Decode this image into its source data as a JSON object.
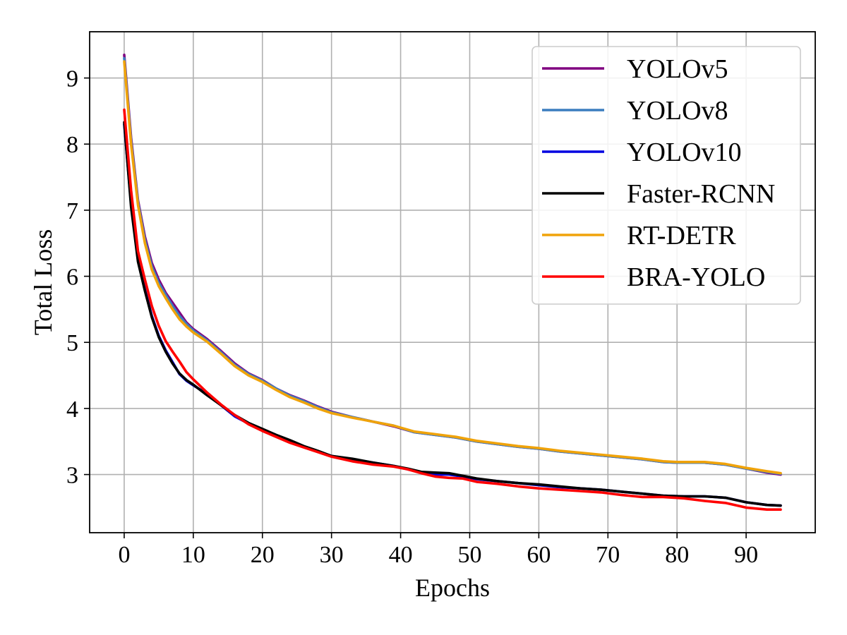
{
  "chart_data": {
    "type": "line",
    "title": "",
    "xlabel": "Epochs",
    "ylabel": "Total Loss",
    "xlim": [
      -5,
      100
    ],
    "ylim": [
      2.12,
      9.7
    ],
    "xticks": [
      0,
      10,
      20,
      30,
      40,
      50,
      60,
      70,
      80,
      90
    ],
    "yticks": [
      3,
      4,
      5,
      6,
      7,
      8,
      9
    ],
    "grid": true,
    "legend_position": "top-right",
    "series": [
      {
        "name": "YOLOv5",
        "color": "#800080",
        "points": [
          [
            0,
            9.35
          ],
          [
            1,
            8.1
          ],
          [
            2,
            7.15
          ],
          [
            3,
            6.6
          ],
          [
            4,
            6.2
          ],
          [
            5,
            5.95
          ],
          [
            6,
            5.75
          ],
          [
            7,
            5.6
          ],
          [
            8,
            5.45
          ],
          [
            9,
            5.3
          ],
          [
            10,
            5.2
          ],
          [
            12,
            5.05
          ],
          [
            14,
            4.87
          ],
          [
            16,
            4.68
          ],
          [
            18,
            4.53
          ],
          [
            20,
            4.43
          ],
          [
            22,
            4.3
          ],
          [
            24,
            4.2
          ],
          [
            26,
            4.12
          ],
          [
            28,
            4.03
          ],
          [
            30,
            3.95
          ],
          [
            33,
            3.87
          ],
          [
            36,
            3.8
          ],
          [
            39,
            3.73
          ],
          [
            42,
            3.64
          ],
          [
            45,
            3.6
          ],
          [
            48,
            3.56
          ],
          [
            51,
            3.5
          ],
          [
            54,
            3.46
          ],
          [
            57,
            3.42
          ],
          [
            60,
            3.39
          ],
          [
            63,
            3.35
          ],
          [
            66,
            3.32
          ],
          [
            69,
            3.29
          ],
          [
            72,
            3.26
          ],
          [
            75,
            3.23
          ],
          [
            78,
            3.19
          ],
          [
            80,
            3.18
          ],
          [
            84,
            3.18
          ],
          [
            87,
            3.15
          ],
          [
            90,
            3.09
          ],
          [
            93,
            3.03
          ],
          [
            95,
            3.0
          ]
        ]
      },
      {
        "name": "YOLOv8",
        "color": "#3b7dbf",
        "points": [
          [
            0,
            9.3
          ],
          [
            1,
            8.05
          ],
          [
            2,
            7.12
          ],
          [
            3,
            6.55
          ],
          [
            4,
            6.15
          ],
          [
            5,
            5.9
          ],
          [
            6,
            5.72
          ],
          [
            7,
            5.55
          ],
          [
            8,
            5.4
          ],
          [
            9,
            5.28
          ],
          [
            10,
            5.18
          ],
          [
            12,
            5.03
          ],
          [
            14,
            4.85
          ],
          [
            16,
            4.66
          ],
          [
            18,
            4.52
          ],
          [
            20,
            4.42
          ],
          [
            22,
            4.3
          ],
          [
            24,
            4.19
          ],
          [
            26,
            4.11
          ],
          [
            28,
            4.02
          ],
          [
            30,
            3.94
          ],
          [
            33,
            3.87
          ],
          [
            36,
            3.8
          ],
          [
            39,
            3.74
          ],
          [
            42,
            3.64
          ],
          [
            45,
            3.6
          ],
          [
            48,
            3.56
          ],
          [
            51,
            3.5
          ],
          [
            54,
            3.46
          ],
          [
            57,
            3.42
          ],
          [
            60,
            3.39
          ],
          [
            63,
            3.35
          ],
          [
            66,
            3.32
          ],
          [
            69,
            3.29
          ],
          [
            72,
            3.26
          ],
          [
            75,
            3.23
          ],
          [
            78,
            3.19
          ],
          [
            80,
            3.18
          ],
          [
            84,
            3.18
          ],
          [
            87,
            3.15
          ],
          [
            90,
            3.09
          ],
          [
            93,
            3.04
          ],
          [
            95,
            3.01
          ]
        ]
      },
      {
        "name": "YOLOv10",
        "color": "#0000e0",
        "points": [
          [
            0,
            8.3
          ],
          [
            1,
            7.1
          ],
          [
            2,
            6.25
          ],
          [
            3,
            5.8
          ],
          [
            4,
            5.4
          ],
          [
            5,
            5.1
          ],
          [
            6,
            4.88
          ],
          [
            7,
            4.7
          ],
          [
            8,
            4.52
          ],
          [
            9,
            4.42
          ],
          [
            10,
            4.35
          ],
          [
            12,
            4.22
          ],
          [
            14,
            4.05
          ],
          [
            16,
            3.88
          ],
          [
            18,
            3.77
          ],
          [
            20,
            3.67
          ],
          [
            22,
            3.58
          ],
          [
            24,
            3.5
          ],
          [
            26,
            3.42
          ],
          [
            28,
            3.35
          ],
          [
            30,
            3.28
          ],
          [
            33,
            3.23
          ],
          [
            36,
            3.18
          ],
          [
            39,
            3.13
          ],
          [
            41,
            3.08
          ],
          [
            43,
            3.03
          ],
          [
            45,
            3.0
          ],
          [
            47,
            3.0
          ],
          [
            49,
            2.97
          ],
          [
            51,
            2.93
          ],
          [
            54,
            2.9
          ],
          [
            57,
            2.87
          ],
          [
            60,
            2.84
          ],
          [
            63,
            2.81
          ],
          [
            66,
            2.79
          ],
          [
            69,
            2.77
          ],
          [
            72,
            2.74
          ],
          [
            75,
            2.71
          ],
          [
            78,
            2.68
          ],
          [
            81,
            2.67
          ],
          [
            84,
            2.67
          ],
          [
            87,
            2.65
          ],
          [
            90,
            2.58
          ],
          [
            93,
            2.54
          ],
          [
            95,
            2.53
          ]
        ]
      },
      {
        "name": "Faster-RCNN",
        "color": "#000000",
        "points": [
          [
            0,
            8.33
          ],
          [
            1,
            7.05
          ],
          [
            2,
            6.22
          ],
          [
            3,
            5.78
          ],
          [
            4,
            5.38
          ],
          [
            5,
            5.08
          ],
          [
            6,
            4.86
          ],
          [
            7,
            4.68
          ],
          [
            8,
            4.53
          ],
          [
            9,
            4.43
          ],
          [
            10,
            4.36
          ],
          [
            12,
            4.2
          ],
          [
            14,
            4.05
          ],
          [
            16,
            3.9
          ],
          [
            18,
            3.78
          ],
          [
            20,
            3.69
          ],
          [
            22,
            3.6
          ],
          [
            24,
            3.52
          ],
          [
            26,
            3.43
          ],
          [
            28,
            3.36
          ],
          [
            30,
            3.28
          ],
          [
            33,
            3.24
          ],
          [
            36,
            3.18
          ],
          [
            39,
            3.13
          ],
          [
            41,
            3.09
          ],
          [
            43,
            3.04
          ],
          [
            45,
            3.03
          ],
          [
            47,
            3.02
          ],
          [
            49,
            2.98
          ],
          [
            51,
            2.94
          ],
          [
            54,
            2.9
          ],
          [
            57,
            2.87
          ],
          [
            60,
            2.85
          ],
          [
            63,
            2.82
          ],
          [
            66,
            2.79
          ],
          [
            69,
            2.77
          ],
          [
            72,
            2.74
          ],
          [
            75,
            2.71
          ],
          [
            78,
            2.68
          ],
          [
            81,
            2.67
          ],
          [
            84,
            2.67
          ],
          [
            87,
            2.65
          ],
          [
            90,
            2.58
          ],
          [
            93,
            2.54
          ],
          [
            95,
            2.53
          ]
        ]
      },
      {
        "name": "RT-DETR",
        "color": "#f0a30a",
        "points": [
          [
            0,
            9.25
          ],
          [
            1,
            8.0
          ],
          [
            2,
            7.08
          ],
          [
            3,
            6.5
          ],
          [
            4,
            6.1
          ],
          [
            5,
            5.85
          ],
          [
            6,
            5.67
          ],
          [
            7,
            5.5
          ],
          [
            8,
            5.35
          ],
          [
            9,
            5.24
          ],
          [
            10,
            5.15
          ],
          [
            12,
            5.01
          ],
          [
            14,
            4.83
          ],
          [
            16,
            4.64
          ],
          [
            18,
            4.5
          ],
          [
            20,
            4.4
          ],
          [
            22,
            4.28
          ],
          [
            24,
            4.17
          ],
          [
            26,
            4.09
          ],
          [
            28,
            4.0
          ],
          [
            30,
            3.93
          ],
          [
            33,
            3.86
          ],
          [
            36,
            3.8
          ],
          [
            39,
            3.74
          ],
          [
            42,
            3.65
          ],
          [
            45,
            3.61
          ],
          [
            48,
            3.57
          ],
          [
            51,
            3.51
          ],
          [
            54,
            3.47
          ],
          [
            57,
            3.43
          ],
          [
            60,
            3.4
          ],
          [
            63,
            3.36
          ],
          [
            66,
            3.33
          ],
          [
            69,
            3.3
          ],
          [
            72,
            3.27
          ],
          [
            75,
            3.24
          ],
          [
            78,
            3.2
          ],
          [
            80,
            3.19
          ],
          [
            84,
            3.19
          ],
          [
            87,
            3.16
          ],
          [
            90,
            3.1
          ],
          [
            93,
            3.05
          ],
          [
            95,
            3.02
          ]
        ]
      },
      {
        "name": "BRA-YOLO",
        "color": "#ff0000",
        "points": [
          [
            0,
            8.52
          ],
          [
            1,
            7.3
          ],
          [
            2,
            6.38
          ],
          [
            3,
            5.95
          ],
          [
            4,
            5.55
          ],
          [
            5,
            5.25
          ],
          [
            6,
            5.02
          ],
          [
            7,
            4.86
          ],
          [
            8,
            4.71
          ],
          [
            9,
            4.55
          ],
          [
            10,
            4.44
          ],
          [
            12,
            4.24
          ],
          [
            14,
            4.06
          ],
          [
            16,
            3.9
          ],
          [
            18,
            3.76
          ],
          [
            20,
            3.66
          ],
          [
            22,
            3.57
          ],
          [
            24,
            3.48
          ],
          [
            26,
            3.41
          ],
          [
            28,
            3.34
          ],
          [
            30,
            3.27
          ],
          [
            33,
            3.2
          ],
          [
            36,
            3.15
          ],
          [
            39,
            3.12
          ],
          [
            41,
            3.08
          ],
          [
            43,
            3.02
          ],
          [
            45,
            2.97
          ],
          [
            47,
            2.95
          ],
          [
            49,
            2.94
          ],
          [
            51,
            2.89
          ],
          [
            54,
            2.86
          ],
          [
            57,
            2.82
          ],
          [
            60,
            2.79
          ],
          [
            63,
            2.77
          ],
          [
            66,
            2.75
          ],
          [
            69,
            2.73
          ],
          [
            72,
            2.69
          ],
          [
            75,
            2.66
          ],
          [
            78,
            2.66
          ],
          [
            81,
            2.64
          ],
          [
            84,
            2.6
          ],
          [
            87,
            2.57
          ],
          [
            90,
            2.5
          ],
          [
            93,
            2.47
          ],
          [
            95,
            2.47
          ]
        ]
      }
    ]
  }
}
